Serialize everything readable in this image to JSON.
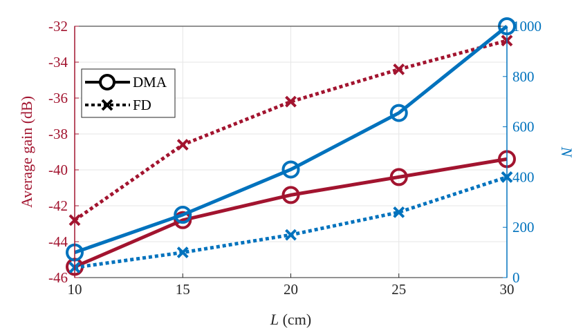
{
  "chart_data": {
    "type": "line",
    "x": [
      10,
      15,
      20,
      25,
      30
    ],
    "xlabel_var": "L",
    "xlabel_unit": " (cm)",
    "xlim": [
      10,
      30
    ],
    "xticks": [
      "10",
      "15",
      "20",
      "25",
      "30"
    ],
    "left_axis": {
      "label": "Average gain (dB)",
      "ylim": [
        -46,
        -32
      ],
      "ticks": [
        "-46",
        "-44",
        "-42",
        "-40",
        "-38",
        "-36",
        "-34",
        "-32"
      ],
      "tick_values": [
        -46,
        -44,
        -42,
        -40,
        -38,
        -36,
        -34,
        -32
      ],
      "color": "#a2142f"
    },
    "right_axis": {
      "label": "N",
      "ylim": [
        0,
        1000
      ],
      "ticks": [
        "0",
        "200",
        "400",
        "600",
        "800",
        "1000"
      ],
      "tick_values": [
        0,
        200,
        400,
        600,
        800,
        1000
      ],
      "color": "#0072bd"
    },
    "grid": true,
    "series": [
      {
        "name": "DMA gain",
        "axis": "left",
        "style": "solid",
        "marker": "circle",
        "values": [
          -45.4,
          -42.8,
          -41.4,
          -40.4,
          -39.4
        ]
      },
      {
        "name": "FD gain",
        "axis": "left",
        "style": "dotted",
        "marker": "x",
        "values": [
          -42.8,
          -38.6,
          -36.2,
          -34.4,
          -32.8
        ]
      },
      {
        "name": "DMA N",
        "axis": "right",
        "style": "solid",
        "marker": "circle",
        "values": [
          100,
          250,
          430,
          655,
          1000
        ]
      },
      {
        "name": "FD N",
        "axis": "right",
        "style": "dotted",
        "marker": "x",
        "values": [
          40,
          100,
          170,
          260,
          400
        ]
      }
    ],
    "legend": {
      "position": "top-left",
      "entries": [
        {
          "label": "DMA",
          "style": "solid",
          "marker": "circle"
        },
        {
          "label": "FD",
          "style": "dotted",
          "marker": "x"
        }
      ]
    }
  }
}
